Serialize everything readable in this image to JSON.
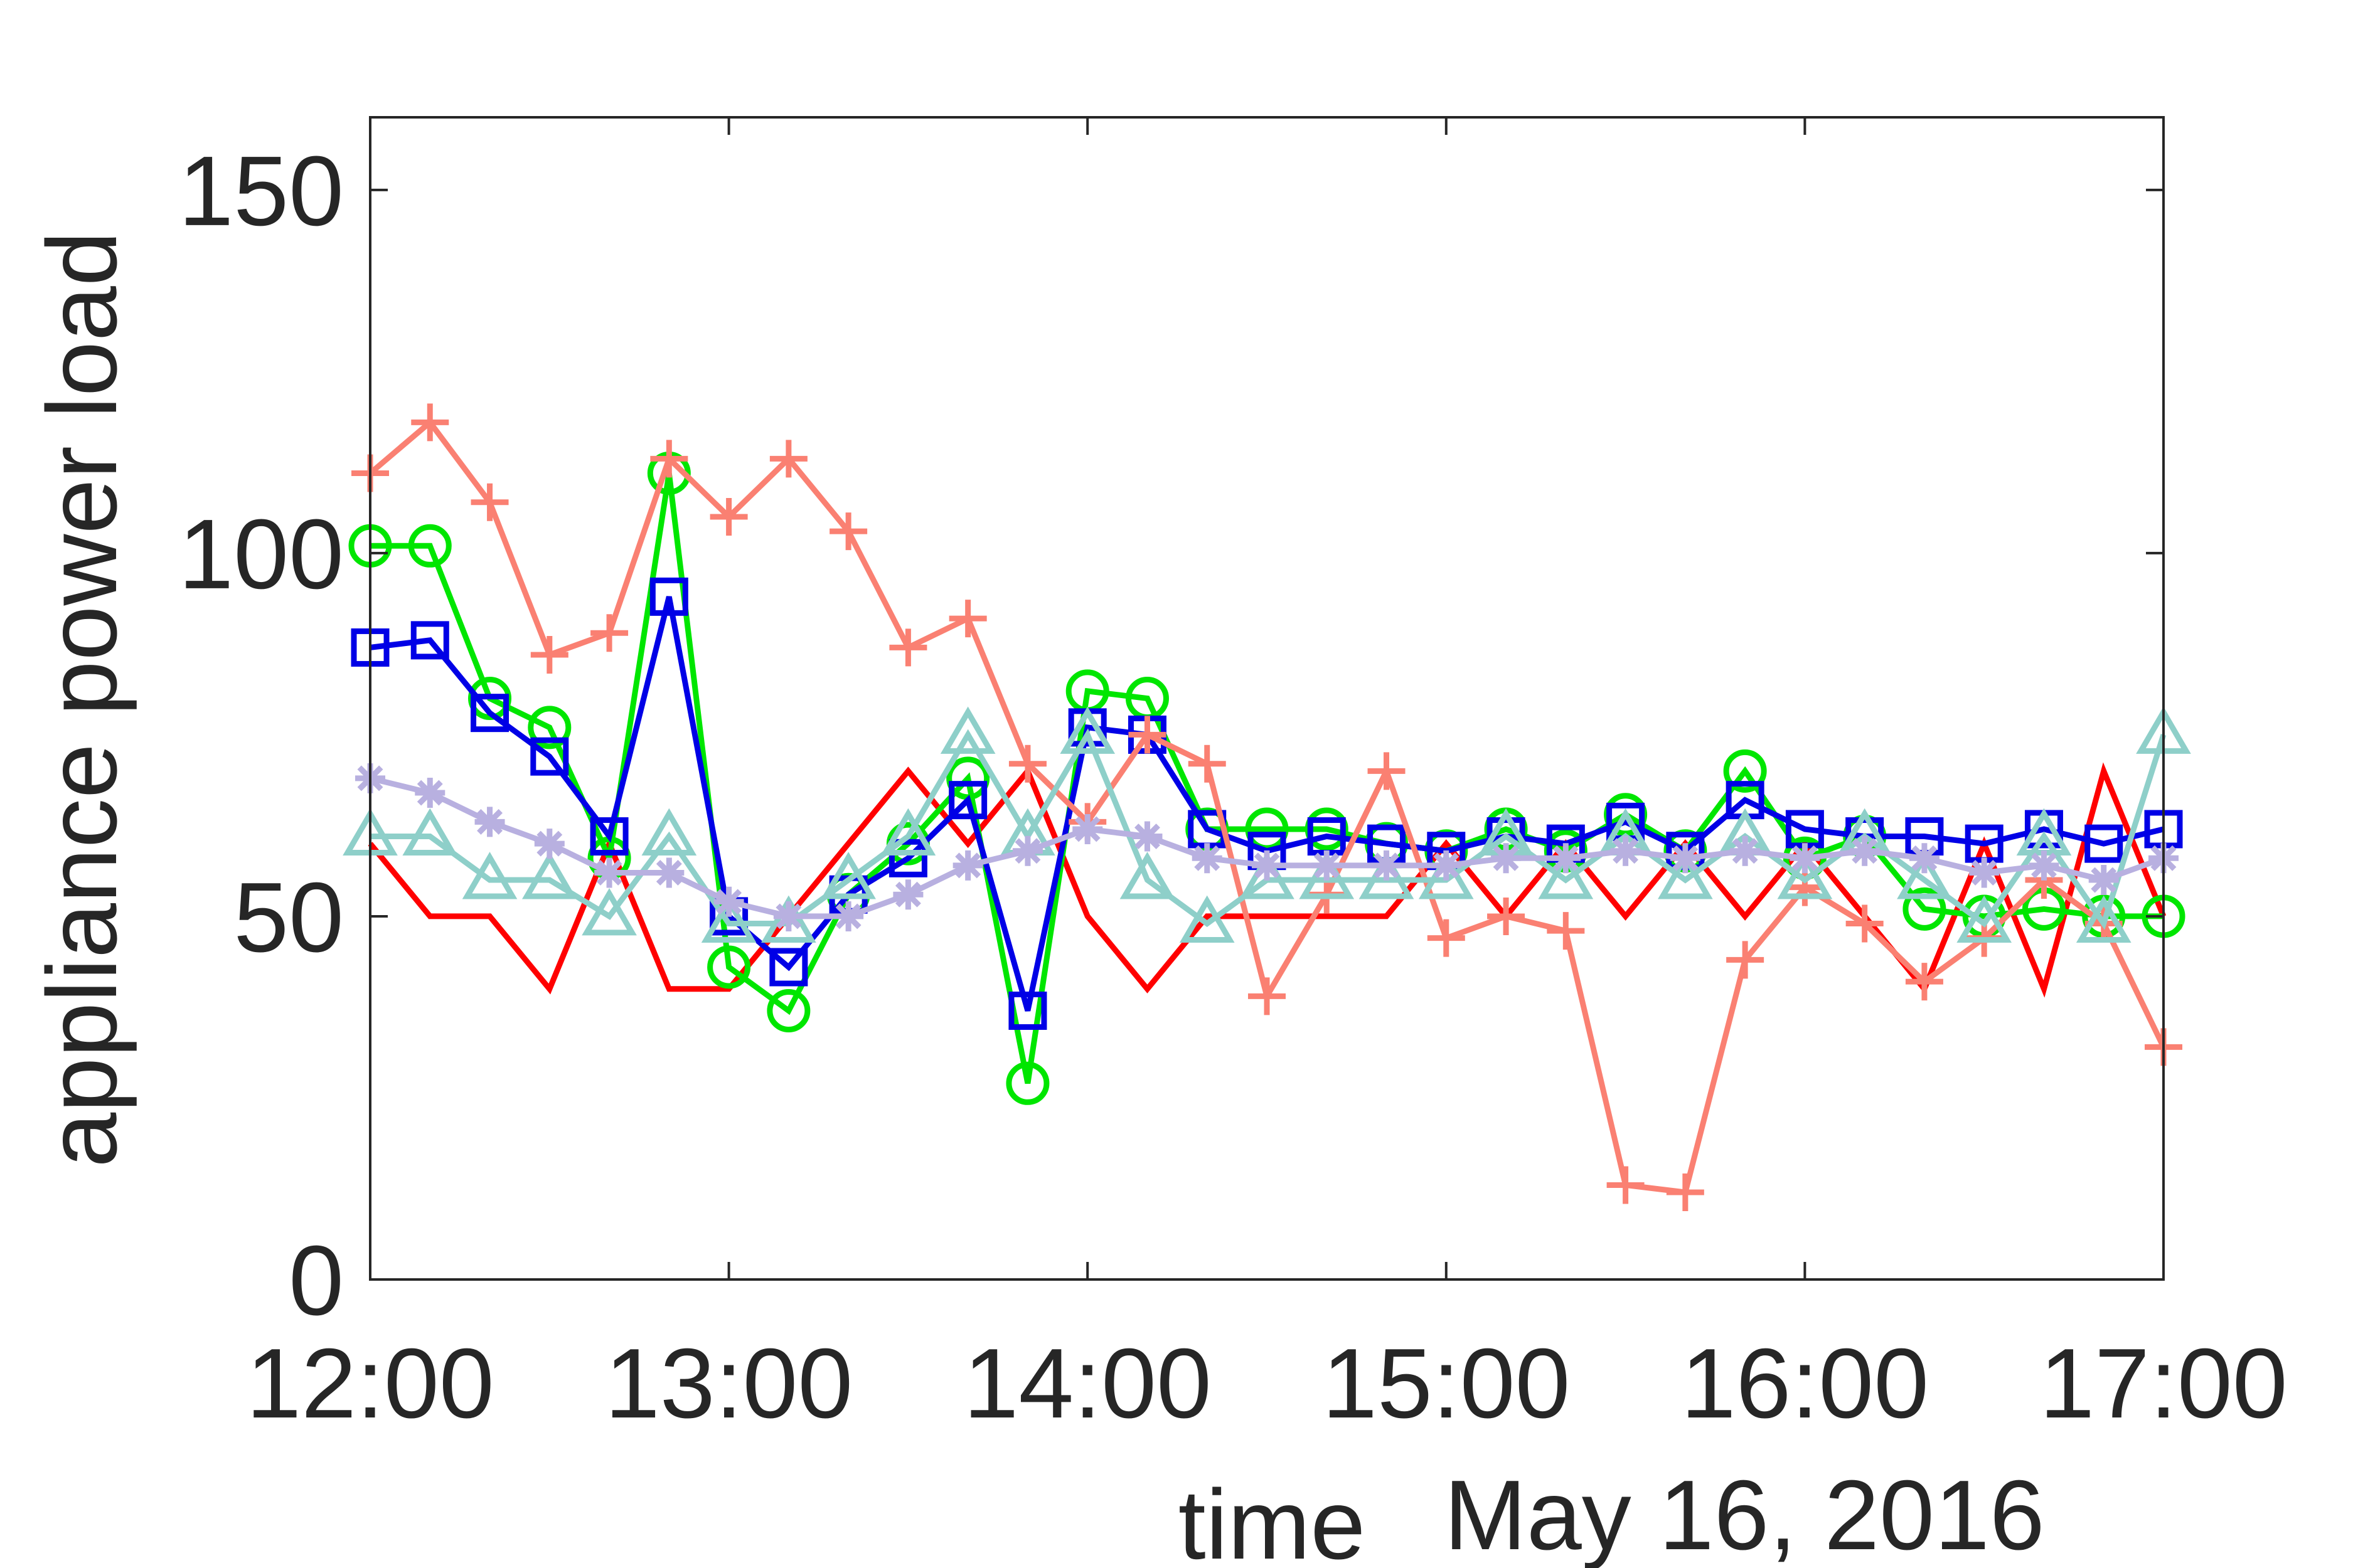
{
  "chart_data": {
    "type": "line",
    "title": "",
    "xlabel": "time",
    "ylabel": "appliance power load",
    "date_label": "May 16, 2016",
    "xlim": [
      "12:00",
      "17:00"
    ],
    "ylim": [
      0,
      160
    ],
    "x_ticks": [
      "12:00",
      "13:00",
      "14:00",
      "15:00",
      "16:00",
      "17:00"
    ],
    "y_ticks": [
      0,
      50,
      100,
      150
    ],
    "grid": false,
    "x": [
      "12:00",
      "12:10",
      "12:20",
      "12:30",
      "12:40",
      "12:50",
      "13:00",
      "13:10",
      "13:20",
      "13:30",
      "13:40",
      "13:50",
      "14:00",
      "14:10",
      "14:20",
      "14:30",
      "14:40",
      "14:50",
      "15:00",
      "15:10",
      "15:20",
      "15:30",
      "15:40",
      "15:50",
      "16:00",
      "16:10",
      "16:20",
      "16:30",
      "16:40",
      "16:50",
      "17:00"
    ],
    "series": [
      {
        "color": "#ff0000",
        "marker": "none",
        "values": [
          60,
          50,
          50,
          40,
          60,
          40,
          40,
          50,
          60,
          70,
          60,
          70,
          50,
          40,
          50,
          50,
          50,
          50,
          60,
          50,
          60,
          50,
          60,
          50,
          60,
          50,
          40,
          60,
          40,
          70,
          50
        ]
      },
      {
        "color": "#00e600",
        "marker": "circle",
        "values": [
          101,
          101,
          80,
          76,
          58,
          111,
          43,
          37,
          53,
          60,
          69,
          27,
          81,
          80,
          62,
          62,
          62,
          60,
          59,
          62,
          59,
          64,
          59,
          70,
          58,
          61,
          51,
          50,
          51,
          50,
          50
        ]
      },
      {
        "color": "#0000e6",
        "marker": "square",
        "values": [
          87,
          88,
          78,
          72,
          61,
          94,
          50,
          43,
          53,
          58,
          66,
          37,
          76,
          75,
          62,
          59,
          61,
          60,
          59,
          61,
          60,
          63,
          59,
          66,
          62,
          61,
          61,
          60,
          62,
          60,
          62
        ]
      },
      {
        "color": "#fa8072",
        "marker": "plus",
        "values": [
          111,
          118,
          107,
          86,
          89,
          113,
          105,
          113,
          103,
          87,
          91,
          71,
          63,
          75,
          71,
          39,
          53,
          70,
          47,
          50,
          48,
          13,
          12,
          44,
          54,
          49,
          41,
          47,
          55,
          49,
          32
        ]
      },
      {
        "color": "#8ecfc9",
        "marker": "triangle",
        "values": [
          61,
          61,
          55,
          55,
          50,
          61,
          49,
          49,
          55,
          61,
          75,
          61,
          75,
          55,
          49,
          55,
          55,
          55,
          55,
          61,
          55,
          61,
          55,
          61,
          55,
          61,
          55,
          49,
          61,
          49,
          75
        ]
      },
      {
        "color": "#b8b0e0",
        "marker": "star",
        "values": [
          69,
          67,
          63,
          60,
          56,
          56,
          52,
          50,
          50,
          53,
          57,
          59,
          62,
          61,
          58,
          57,
          57,
          57,
          57,
          58,
          58,
          59,
          58,
          59,
          58,
          59,
          58,
          56,
          57,
          55,
          58
        ]
      }
    ]
  }
}
